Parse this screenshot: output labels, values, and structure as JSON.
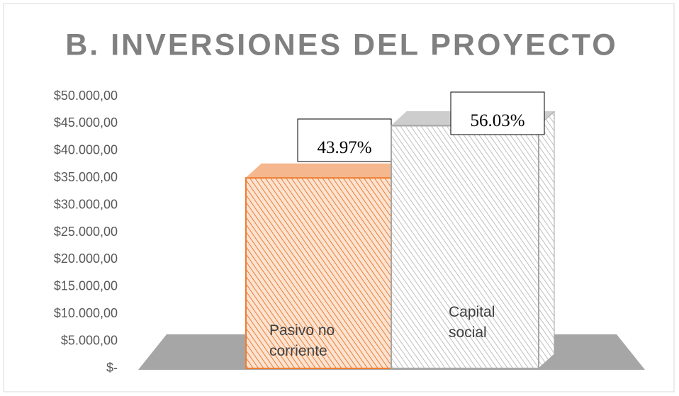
{
  "chart_data": {
    "type": "bar3d",
    "title": "B. INVERSIONES DEL PROYECTO",
    "categories": [
      "Pasivo no corriente",
      "Capital social"
    ],
    "values": [
      35000,
      44600
    ],
    "data_labels": [
      "43.97%",
      "56.03%"
    ],
    "colors": [
      "#ed7d31",
      "#a6a6a6"
    ],
    "ylim": [
      0,
      50000
    ],
    "yticks": [
      {
        "value": 0,
        "label": "$-"
      },
      {
        "value": 5000,
        "label": "$5.000,00"
      },
      {
        "value": 10000,
        "label": "$10.000,00"
      },
      {
        "value": 15000,
        "label": "$15.000,00"
      },
      {
        "value": 20000,
        "label": "$20.000,00"
      },
      {
        "value": 25000,
        "label": "$25.000,00"
      },
      {
        "value": 30000,
        "label": "$30.000,00"
      },
      {
        "value": 35000,
        "label": "$35.000,00"
      },
      {
        "value": 40000,
        "label": "$40.000,00"
      },
      {
        "value": 45000,
        "label": "$45.000,00"
      },
      {
        "value": 50000,
        "label": "$50.000,00"
      }
    ]
  }
}
